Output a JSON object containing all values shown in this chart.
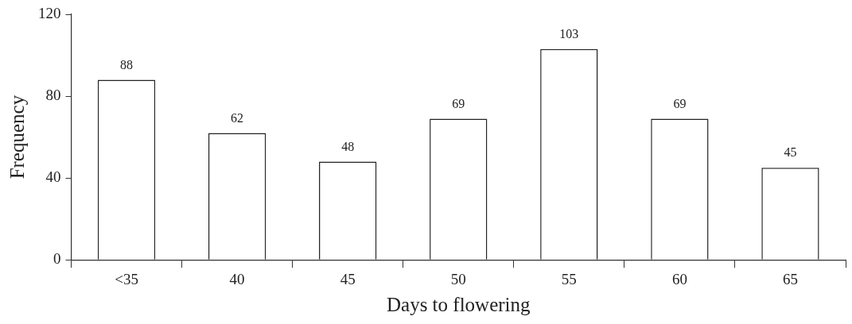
{
  "chart_data": {
    "type": "bar",
    "xlabel": "Days to flowering",
    "ylabel": "Frequency",
    "categories": [
      "<35",
      "40",
      "45",
      "50",
      "55",
      "60",
      "65"
    ],
    "values": [
      88,
      62,
      48,
      69,
      103,
      69,
      45
    ],
    "color": "#ffffff",
    "ylim": [
      0,
      120
    ],
    "yticks": [
      0,
      40,
      80,
      120
    ],
    "data_labels": true,
    "grid": false,
    "legend": false
  }
}
